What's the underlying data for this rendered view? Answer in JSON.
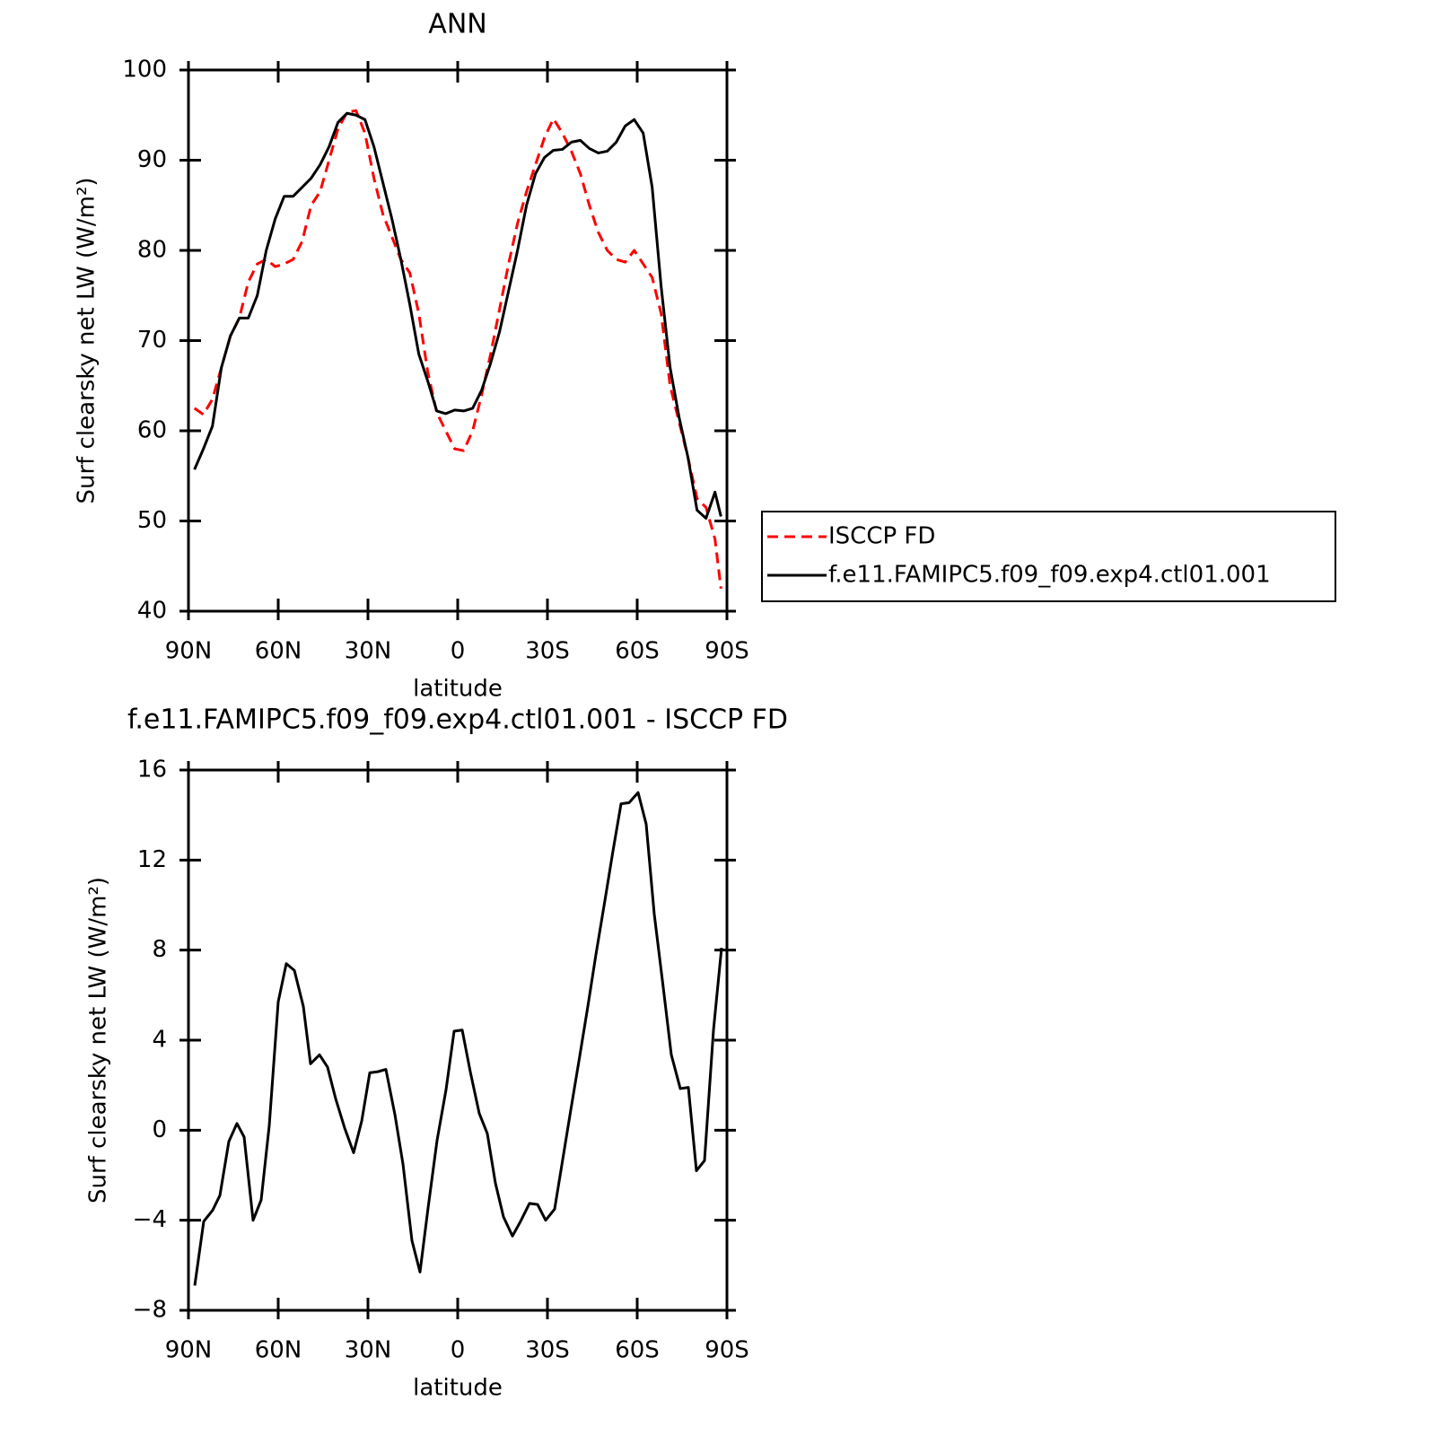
{
  "chart_data": [
    {
      "type": "line",
      "title": "ANN",
      "xlabel": "latitude",
      "ylabel": "Surf clearsky net LW (W/m²)",
      "x": [
        88,
        85,
        82,
        79,
        76,
        73,
        70,
        67,
        64,
        61,
        58,
        55,
        52,
        49,
        46,
        43,
        40,
        37,
        34,
        31,
        28,
        25,
        22,
        19,
        16,
        13,
        10,
        7,
        4,
        1,
        -2,
        -5,
        -8,
        -11,
        -14,
        -17,
        -20,
        -23,
        -26,
        -29,
        -32,
        -35,
        -38,
        -41,
        -44,
        -47,
        -50,
        -53,
        -56,
        -59,
        -62,
        -65,
        -68,
        -71,
        -74,
        -77,
        -80,
        -83,
        -86,
        -88
      ],
      "series": [
        {
          "name": "ISCCP FD",
          "color": "#ff0000",
          "line_style": "dashed",
          "values": [
            62.5,
            61.8,
            63.5,
            67,
            70.5,
            72.5,
            76.5,
            78.5,
            79,
            78.2,
            78.5,
            79,
            81,
            85,
            86.5,
            90,
            93.5,
            95.3,
            95.5,
            93,
            88,
            84,
            81.5,
            79,
            77.5,
            73,
            66.5,
            62,
            60,
            58,
            57.8,
            60,
            64,
            68.5,
            73.5,
            78.5,
            83,
            86.5,
            89.5,
            92.5,
            94.6,
            93,
            91,
            88.5,
            85,
            82,
            80,
            79,
            78.7,
            80,
            78.5,
            77,
            73,
            65,
            61,
            57,
            52.5,
            51.5,
            48,
            42.5
          ]
        },
        {
          "name": "f.e11.FAMIPC5.f09_f09.exp4.ctl01.001",
          "color": "#000000",
          "line_style": "solid",
          "values": [
            55.7,
            58,
            60.5,
            67,
            70.5,
            72.5,
            72.5,
            75,
            80,
            83.5,
            86,
            86,
            87,
            88,
            89.5,
            91.5,
            94.2,
            95.2,
            95,
            94.5,
            91.5,
            87.5,
            83.5,
            79,
            74,
            68.5,
            65.5,
            62.2,
            61.9,
            62.3,
            62.2,
            62.5,
            64.5,
            67.5,
            71,
            75.5,
            80,
            85,
            88.5,
            90.3,
            91.1,
            91.2,
            92,
            92.2,
            91.3,
            90.8,
            91,
            92,
            93.8,
            94.5,
            93,
            87,
            76,
            67,
            61.5,
            57,
            51.2,
            50.3,
            53.2,
            50.5
          ]
        }
      ],
      "xlim": [
        90,
        -90
      ],
      "xticks": [
        {
          "value": 90,
          "label": "90N"
        },
        {
          "value": 60,
          "label": "60N"
        },
        {
          "value": 30,
          "label": "30N"
        },
        0,
        {
          "value": -30,
          "label": "30S"
        },
        {
          "value": -60,
          "label": "60S"
        },
        {
          "value": -90,
          "label": "90S"
        }
      ],
      "ylim": [
        40,
        100
      ],
      "yticks": [
        40,
        50,
        60,
        70,
        80,
        90,
        100
      ],
      "legend": "right"
    },
    {
      "type": "line",
      "title": "f.e11.FAMIPC5.f09_f09.exp4.ctl01.001 - ISCCP FD",
      "xlabel": "latitude",
      "ylabel": "Surf clearsky net LW (W/m²)",
      "x": [
        87.9,
        84.9,
        81.9,
        79.5,
        76.5,
        73.8,
        71.4,
        68.4,
        65.7,
        63,
        60,
        57.3,
        54.6,
        51.6,
        49.2,
        46.2,
        43.5,
        40.8,
        37.8,
        34.8,
        32.1,
        29.4,
        26.7,
        24,
        21,
        18.3,
        15.3,
        12.6,
        9.9,
        6.9,
        3.9,
        1.2,
        -1.5,
        -4.2,
        -7.2,
        -9.9,
        -12.6,
        -15.3,
        -18.3,
        -21,
        -24,
        -26.7,
        -29.4,
        -32.4,
        -35.1,
        -37.8,
        -40.8,
        -43.5,
        -46.2,
        -49.2,
        -51.9,
        -54.6,
        -57.3,
        -60.3,
        -63,
        -65.7,
        -68.7,
        -71.4,
        -74.4,
        -77.1,
        -79.8,
        -82.5,
        -85.5,
        -88.2
      ],
      "values": [
        -6.9,
        -4.05,
        -3.55,
        -2.9,
        -0.5,
        0.3,
        -0.3,
        -4,
        -3.1,
        0.2,
        5.7,
        7.4,
        7.1,
        5.5,
        2.95,
        3.35,
        2.8,
        1.4,
        0.1,
        -1,
        0.4,
        2.55,
        2.6,
        2.7,
        0.7,
        -1.5,
        -4.9,
        -6.3,
        -3.45,
        -0.45,
        1.8,
        4.4,
        4.45,
        2.6,
        0.75,
        -0.15,
        -2.35,
        -3.85,
        -4.7,
        -4.05,
        -3.25,
        -3.3,
        -4,
        -3.5,
        -1.3,
        0.9,
        3.3,
        5.5,
        7.8,
        10.2,
        12.4,
        14.5,
        14.55,
        15,
        13.6,
        9.6,
        6.35,
        3.35,
        1.85,
        1.9,
        -1.8,
        -1.35,
        4.45,
        8.1
      ],
      "color": "#000000",
      "xlim": [
        90,
        -90
      ],
      "xticks": [
        {
          "value": 90,
          "label": "90N"
        },
        {
          "value": 60,
          "label": "60N"
        },
        {
          "value": 30,
          "label": "30N"
        },
        0,
        {
          "value": -30,
          "label": "30S"
        },
        {
          "value": -60,
          "label": "60S"
        },
        {
          "value": -90,
          "label": "90S"
        }
      ],
      "ylim": [
        -8,
        16
      ],
      "yticks": [
        {
          "value": -8,
          "label": "−8"
        },
        {
          "value": -4,
          "label": "−4"
        },
        0,
        4,
        8,
        12,
        16
      ]
    }
  ]
}
